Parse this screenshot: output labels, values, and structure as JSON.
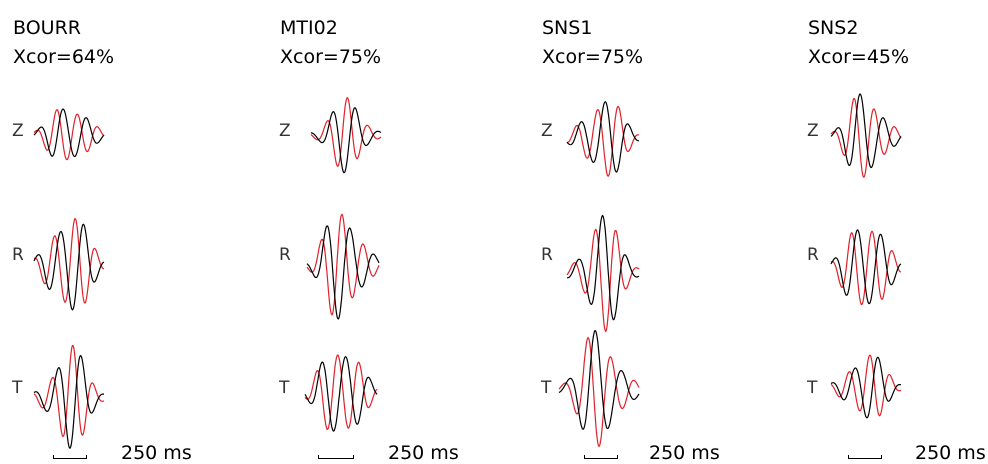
{
  "stations": [
    {
      "name": "BOURR",
      "xcor": "Xcor=64%"
    },
    {
      "name": "MTI02",
      "xcor": "Xcor=75%"
    },
    {
      "name": "SNS1",
      "xcor": "Xcor=75%"
    },
    {
      "name": "SNS2",
      "xcor": "Xcor=45%"
    }
  ],
  "components": [
    "Z",
    "R",
    "T"
  ],
  "scale_label": "250 ms",
  "legend_colors": {
    "observed": "#000000",
    "synthetic": "#e0202a"
  }
}
